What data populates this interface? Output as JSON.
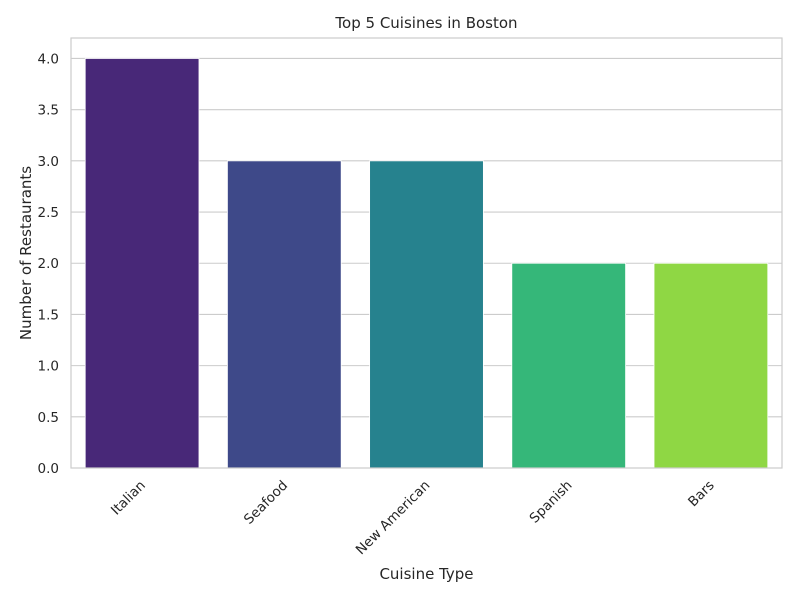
{
  "chart_data": {
    "type": "bar",
    "title": "Top 5 Cuisines in Boston",
    "xlabel": "Cuisine Type",
    "ylabel": "Number of Restaurants",
    "categories": [
      "Italian",
      "Seafood",
      "New American",
      "Spanish",
      "Bars"
    ],
    "values": [
      4,
      3,
      3,
      2,
      2
    ],
    "colors": [
      "#482878",
      "#3e4989",
      "#26828e",
      "#35b779",
      "#8fd744"
    ],
    "ylim": [
      0,
      4.2
    ],
    "yticks": [
      "0.0",
      "0.5",
      "1.0",
      "1.5",
      "2.0",
      "2.5",
      "3.0",
      "3.5",
      "4.0"
    ],
    "grid": true,
    "grid_axis": "y",
    "style": {
      "grid_color": "#cccccc",
      "spine_color": "#cccccc",
      "text_color": "#262626"
    }
  }
}
